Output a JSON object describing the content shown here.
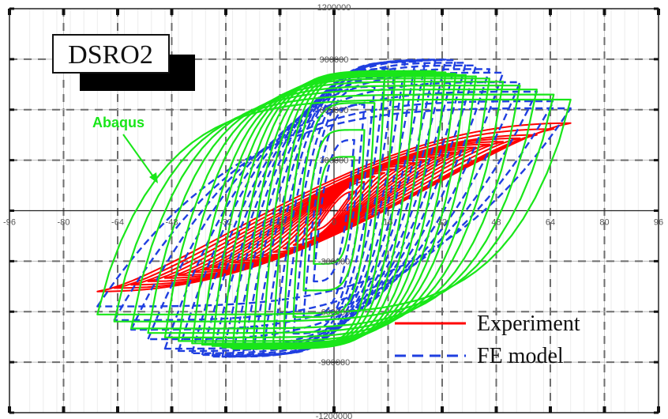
{
  "chart_data": {
    "type": "line",
    "title": "",
    "xlabel": "",
    "ylabel": "",
    "xlim": [
      -96,
      96
    ],
    "ylim": [
      -1200000,
      1200000
    ],
    "x_ticks": [
      -96,
      -80,
      -64,
      -48,
      -32,
      -16,
      0,
      16,
      32,
      48,
      64,
      80,
      96
    ],
    "x_tick_labels": [
      "-96",
      "-80",
      "-64",
      "-48",
      "-32",
      "-16",
      "0",
      "16",
      "32",
      "48",
      "64",
      "80",
      "96"
    ],
    "y_ticks": [
      -1200000,
      -900000,
      -600000,
      -300000,
      0,
      300000,
      600000,
      900000,
      1200000
    ],
    "y_tick_labels": [
      "-1200000",
      "-900000",
      "-600000",
      "-300000",
      "",
      "300000",
      "600000",
      "900000",
      "1200000"
    ],
    "grid": true,
    "panel_label": "DSRO2",
    "legend_position": "bottom-right",
    "annotation": {
      "text": "Abaqus",
      "color": "#19e619"
    },
    "series": [
      {
        "name": "Experiment",
        "color": "#ff0000",
        "dash": "solid",
        "amplitudes": [
          6,
          9,
          12,
          15,
          18,
          21,
          24,
          27,
          30,
          33,
          36,
          39,
          42,
          46,
          50,
          55,
          60,
          65,
          70
        ],
        "skeleton_x": [
          -75,
          -70,
          -60,
          -45,
          -30,
          -20,
          -10,
          0,
          10,
          20,
          30,
          45,
          60,
          70,
          72
        ],
        "skeleton_y": [
          -510000,
          -480000,
          -440000,
          -380000,
          -310000,
          -260000,
          -190000,
          0,
          190000,
          260000,
          320000,
          390000,
          450000,
          520000,
          540000
        ]
      },
      {
        "name": "FE model",
        "color": "#1f3fe0",
        "dash": "dashed",
        "amplitudes": [
          6,
          9,
          12,
          15,
          18,
          21,
          24,
          27,
          30,
          33,
          36,
          39,
          42,
          46,
          50,
          55,
          60,
          65,
          70
        ],
        "skeleton_x": [
          -73,
          -65,
          -50,
          -35,
          -20,
          -10,
          0,
          10,
          20,
          35,
          50,
          65,
          71
        ],
        "skeleton_y": [
          -520000,
          -650000,
          -820000,
          -870000,
          -850000,
          -700000,
          0,
          700000,
          880000,
          900000,
          820000,
          650000,
          600000
        ]
      },
      {
        "name": "Abaqus",
        "color": "#19e619",
        "dash": "solid",
        "amplitudes": [
          6,
          9,
          12,
          15,
          18,
          21,
          24,
          27,
          30,
          33,
          36,
          39,
          42,
          46,
          50,
          55,
          60,
          65,
          70
        ],
        "skeleton_x": [
          -72,
          -60,
          -45,
          -30,
          -15,
          0,
          15,
          30,
          45,
          60,
          70
        ],
        "skeleton_y": [
          -600000,
          -700000,
          -780000,
          -820000,
          -790000,
          0,
          800000,
          830000,
          790000,
          720000,
          660000
        ]
      }
    ]
  },
  "legend": {
    "items": [
      {
        "label": "Experiment"
      },
      {
        "label": "FE model"
      }
    ]
  }
}
